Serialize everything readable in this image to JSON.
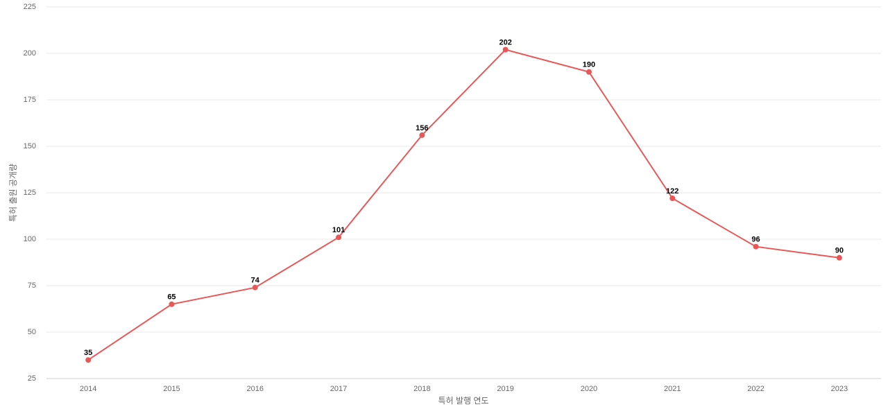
{
  "chart_data": {
    "type": "line",
    "x_label": "특허 발행 연도",
    "y_label": "특허 출원 공개량",
    "categories": [
      "2014",
      "2015",
      "2016",
      "2017",
      "2018",
      "2019",
      "2020",
      "2021",
      "2022",
      "2023"
    ],
    "values": [
      35,
      65,
      74,
      101,
      156,
      202,
      190,
      122,
      96,
      90
    ],
    "color": "#e85858",
    "ylim": [
      25,
      225
    ],
    "yticks": [
      25,
      50,
      75,
      100,
      125,
      150,
      175,
      200,
      225
    ],
    "grid": true
  }
}
